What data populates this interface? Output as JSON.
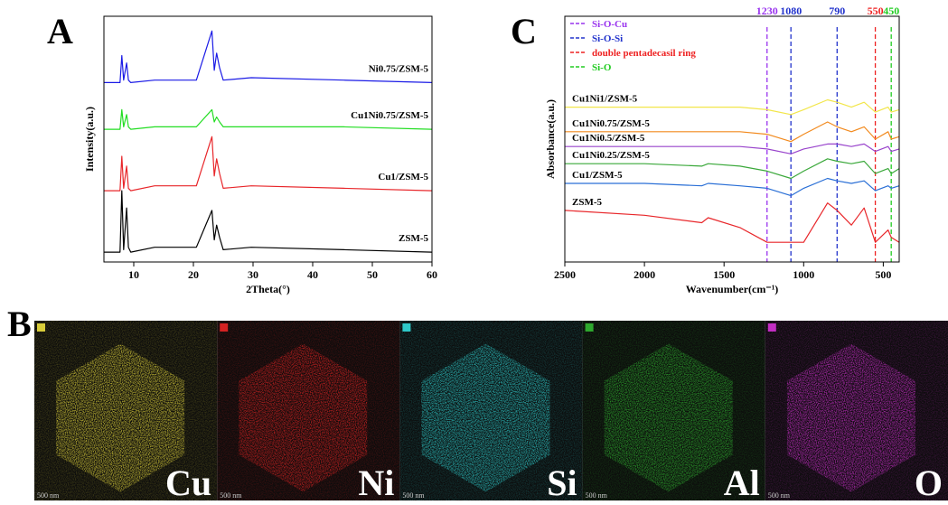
{
  "chart_data": [
    {
      "type": "line",
      "panel": "A",
      "xlabel": "2Theta(°)",
      "ylabel": "Intensity(a.u.)",
      "x": [
        5,
        7.7,
        8.0,
        8.3,
        8.8,
        9.1,
        9.5,
        13.5,
        14.5,
        20.5,
        23.1,
        23.5,
        23.9,
        24.4,
        25,
        29.7,
        45.2,
        60
      ],
      "xlim": [
        5,
        60
      ],
      "xticks": [
        10,
        20,
        30,
        40,
        50,
        60
      ],
      "ylim": [
        0,
        100
      ],
      "series": [
        {
          "name": "ZSM-5",
          "color": "#000000",
          "values": [
            4,
            4,
            29,
            5,
            22,
            6,
            4,
            6,
            6,
            6,
            21,
            9,
            15,
            10,
            5,
            6,
            5,
            4
          ]
        },
        {
          "name": "Cu1/ZSM-5",
          "color": "#e8262a",
          "values": [
            29,
            29,
            43,
            30,
            39,
            30,
            29,
            31,
            31,
            31,
            51,
            35,
            42,
            36,
            30,
            31,
            30,
            29
          ]
        },
        {
          "name": "Cu1Ni0.75/ZSM-5",
          "color": "#22dd22",
          "values": [
            54,
            54,
            62,
            55,
            60,
            55,
            54,
            55,
            55,
            55,
            62,
            57,
            59,
            57,
            55,
            55,
            55,
            54
          ]
        },
        {
          "name": "Ni0.75/ZSM-5",
          "color": "#1a1ae6",
          "values": [
            73,
            73,
            84,
            74,
            81,
            74,
            73,
            74,
            74,
            74,
            94,
            78,
            85,
            79,
            74,
            75,
            74,
            73
          ]
        }
      ]
    },
    {
      "type": "line",
      "panel": "C",
      "xlabel": "Wavenumber(cm⁻¹)",
      "ylabel": "Absorbance(a.u.)",
      "x": [
        2500,
        2000,
        1640,
        1600,
        1400,
        1230,
        1080,
        1000,
        850,
        790,
        700,
        620,
        550,
        470,
        450,
        400
      ],
      "xlim": [
        2500,
        400
      ],
      "xticks": [
        2500,
        2000,
        1500,
        1000,
        500
      ],
      "ylim": [
        0,
        100
      ],
      "reference_lines": [
        {
          "x": 1230,
          "color": "#9933ee"
        },
        {
          "x": 1080,
          "color": "#2233cc"
        },
        {
          "x": 790,
          "color": "#2233cc"
        },
        {
          "x": 550,
          "color": "#ee2222"
        },
        {
          "x": 450,
          "color": "#22cc22"
        }
      ],
      "legend": [
        {
          "label": "Si-O-Cu",
          "color": "#9933ee"
        },
        {
          "label": "Si-O-Si",
          "color": "#2233cc"
        },
        {
          "label": "double pentadecasil ring",
          "color": "#ee2222"
        },
        {
          "label": "Si-O",
          "color": "#22cc22"
        }
      ],
      "series": [
        {
          "name": "ZSM-5",
          "color": "#e8262a",
          "values": [
            21,
            19,
            16,
            18,
            14,
            8,
            8,
            8,
            24,
            21,
            15,
            22,
            8,
            13,
            10,
            8
          ]
        },
        {
          "name": "Cu1/ZSM-5",
          "color": "#2a6fd6",
          "values": [
            32,
            32,
            31,
            32,
            31,
            30,
            27,
            30,
            34,
            33,
            32,
            33,
            29,
            31,
            30,
            31
          ]
        },
        {
          "name": "Cu1Ni0.25/ZSM-5",
          "color": "#3aa83a",
          "values": [
            40,
            40,
            39,
            40,
            39,
            37,
            34,
            37,
            42,
            41,
            40,
            41,
            36,
            38,
            36,
            38
          ]
        },
        {
          "name": "Cu1Ni0.5/ZSM-5",
          "color": "#9944cc",
          "values": [
            47,
            47,
            47,
            47,
            47,
            46,
            44,
            46,
            48,
            48,
            47,
            48,
            45,
            47,
            45,
            46
          ]
        },
        {
          "name": "Cu1Ni0.75/ZSM-5",
          "color": "#f28a1e",
          "values": [
            53,
            53,
            53,
            53,
            53,
            52,
            49,
            52,
            57,
            55,
            53,
            55,
            50,
            53,
            50,
            51
          ]
        },
        {
          "name": "Cu1Ni1/ZSM-5",
          "color": "#f2e64a",
          "values": [
            63,
            63,
            63,
            63,
            63,
            62,
            60,
            62,
            66,
            65,
            63,
            65,
            61,
            63,
            61,
            62
          ]
        }
      ]
    }
  ],
  "eds": {
    "panel": "B",
    "maps": [
      {
        "element": "Cu",
        "color": "#d8cc3a",
        "scale": "500 nm"
      },
      {
        "element": "Ni",
        "color": "#d42222",
        "scale": "500 nm"
      },
      {
        "element": "Si",
        "color": "#2ec8c8",
        "scale": "500 nm"
      },
      {
        "element": "Al",
        "color": "#2ea82e",
        "scale": "500 nm"
      },
      {
        "element": "O",
        "color": "#c22ec2",
        "scale": "500 nm"
      }
    ]
  }
}
